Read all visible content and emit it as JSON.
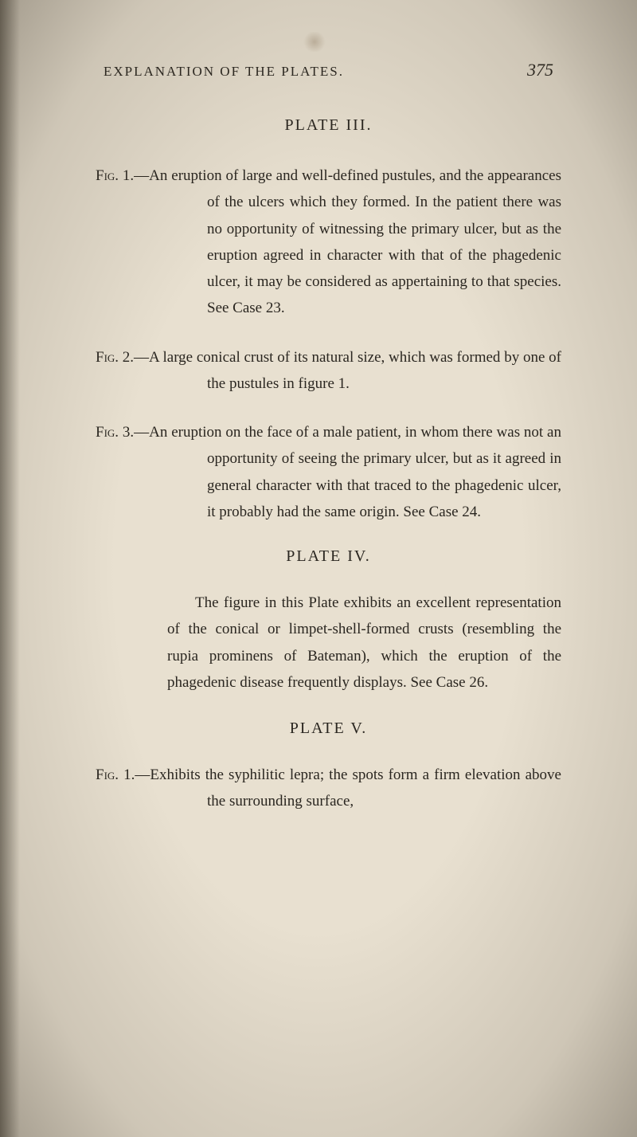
{
  "page": {
    "running_title": "EXPLANATION OF THE PLATES.",
    "page_number": "375",
    "background_color": "#e8e0d0",
    "text_color": "#2a2620",
    "body_fontsize": 19,
    "heading_fontsize": 20,
    "line_height": 1.75
  },
  "plate3": {
    "heading": "PLATE III.",
    "fig1": {
      "label": "Fig. 1.—",
      "text": "An eruption of large and well-defined pustules, and the appearances of the ulcers which they formed. In the patient there was no opportunity of witnessing the primary ulcer, but as the eruption agreed in character with that of the phagedenic ulcer, it may be considered as appertaining to that species. See Case 23."
    },
    "fig2": {
      "label": "Fig. 2.—",
      "text": "A large conical crust of its natural size, which was formed by one of the pustules in figure 1."
    },
    "fig3": {
      "label": "Fig. 3.—",
      "text": "An eruption on the face of a male patient, in whom there was not an opportunity of seeing the primary ulcer, but as it agreed in general character with that traced to the phagedenic ulcer, it probably had the same origin. See Case 24."
    }
  },
  "plate4": {
    "heading": "PLATE IV.",
    "para": "The figure in this Plate exhibits an excellent representation of the conical or limpet-shell-formed crusts (resembling the rupia prominens of Bateman), which the eruption of the phagedenic disease frequently displays. See Case 26."
  },
  "plate5": {
    "heading": "PLATE V.",
    "fig1": {
      "label": "Fig. 1.—",
      "text": "Exhibits the syphilitic lepra; the spots form a firm elevation above the surrounding surface,"
    }
  }
}
